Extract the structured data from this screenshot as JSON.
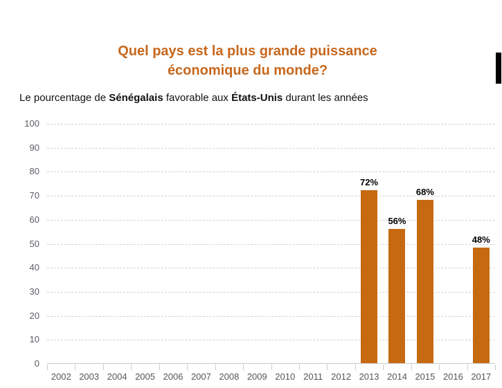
{
  "page": {
    "title_line1": "Quel pays est la plus grande puissance",
    "title_line2": "économique du monde?"
  },
  "subtitle": {
    "prefix": "Le pourcentage de ",
    "bold1": "Sénégalais",
    "mid": " favorable aux ",
    "bold2": "États-Unis",
    "suffix": " durant les années"
  },
  "colors": {
    "title": "#c7671d",
    "bar": "#c56a11",
    "grid": "#d0d0d0",
    "axis": "#c9c9c9",
    "y_label": "#5b5c63",
    "x_label": "#55565c",
    "data_label": "#000000",
    "scroll_thumb": "#000000"
  },
  "chart_data": {
    "type": "bar",
    "title": "Quel pays est la plus grande puissance économique du monde?",
    "subtitle": "Le pourcentage de Sénégalais favorable aux États-Unis durant les années",
    "categories": [
      "2002",
      "2003",
      "2004",
      "2005",
      "2006",
      "2007",
      "2008",
      "2009",
      "2010",
      "2011",
      "2012",
      "2013",
      "2014",
      "2015",
      "2016",
      "2017"
    ],
    "values": [
      null,
      null,
      null,
      null,
      null,
      null,
      null,
      null,
      null,
      null,
      null,
      72,
      56,
      68,
      null,
      48
    ],
    "value_labels": [
      "",
      "",
      "",
      "",
      "",
      "",
      "",
      "",
      "",
      "",
      "",
      "72%",
      "56%",
      "68%",
      "",
      "48%"
    ],
    "xlabel": "",
    "ylabel": "",
    "ylim": [
      0,
      100
    ],
    "ytick_step": 10,
    "grid": "horizontal-dashed",
    "legend": "none",
    "bar_color": "#c56a11"
  }
}
